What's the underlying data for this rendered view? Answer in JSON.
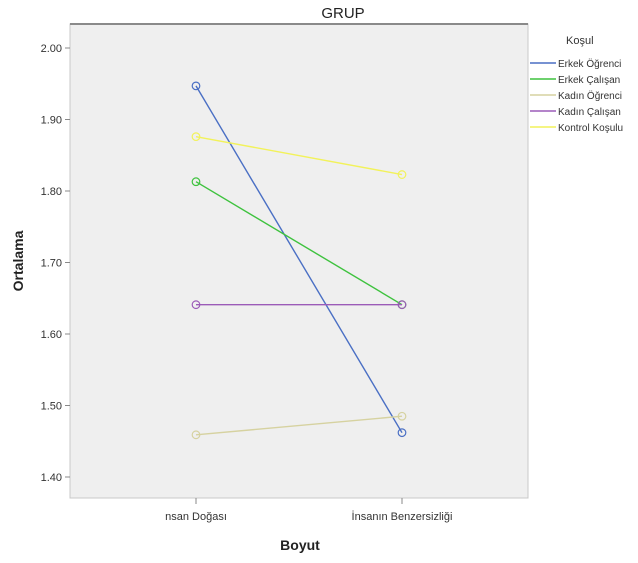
{
  "chart_data": {
    "type": "line",
    "title": "GRUP",
    "xlabel": "Boyut",
    "ylabel": "Ortalama",
    "categories": [
      "nsan Doğası",
      "İnsanın Benzersizliği"
    ],
    "yticks": [
      "1.40",
      "1.50",
      "1.60",
      "1.70",
      "1.80",
      "1.90",
      "2.00"
    ],
    "ylim": [
      1.38,
      2.04
    ],
    "grid": false,
    "legend_title": "Koşul",
    "legend_position": "right",
    "series": [
      {
        "name": "Erkek Öğrenci",
        "color": "#4a6fc4",
        "values": [
          1.947,
          1.462
        ]
      },
      {
        "name": "Erkek Çalışan",
        "color": "#3ec23e",
        "values": [
          1.813,
          1.641
        ]
      },
      {
        "name": "Kadın Öğrenci",
        "color": "#d6d2a0",
        "values": [
          1.459,
          1.485
        ]
      },
      {
        "name": "Kadın Çalışan",
        "color": "#9b5bb8",
        "values": [
          1.641,
          1.641
        ]
      },
      {
        "name": "Kontrol Koşulu",
        "color": "#f2f25a",
        "values": [
          1.876,
          1.823
        ]
      }
    ]
  }
}
